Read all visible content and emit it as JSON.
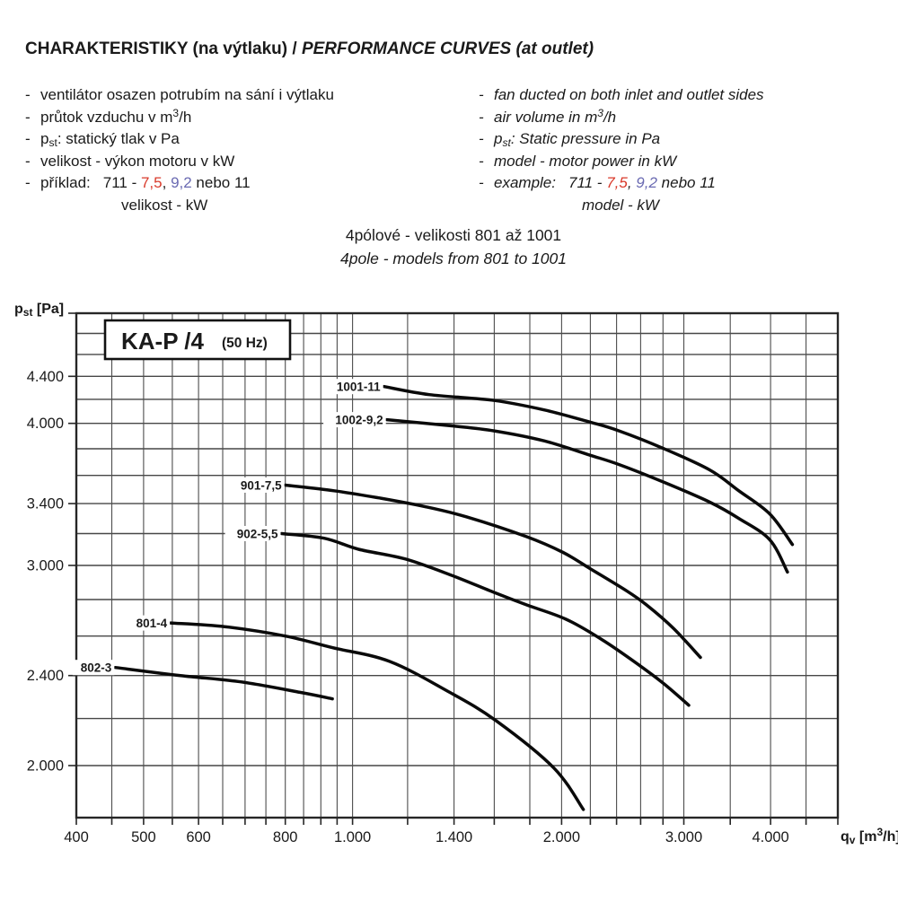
{
  "header": {
    "title_cz": "CHARAKTERISTIKY (na výtlaku)",
    "title_sep": " / ",
    "title_en": "PERFORMANCE CURVES (at outlet)"
  },
  "notes": {
    "cz_items": [
      {
        "dash": true,
        "parts": [
          {
            "t": "ventilátor osazen potrubím na sání i výtlaku"
          }
        ]
      },
      {
        "dash": true,
        "parts": [
          {
            "t": "průtok vzduchu v m"
          },
          {
            "t": "3",
            "sup": 1
          },
          {
            "t": "/h"
          }
        ]
      },
      {
        "dash": true,
        "parts": [
          {
            "t": "p"
          },
          {
            "t": "st",
            "sub": 1
          },
          {
            "t": ": statický tlak v Pa"
          }
        ]
      },
      {
        "dash": true,
        "parts": [
          {
            "t": "velikost - výkon motoru v kW"
          }
        ]
      },
      {
        "dash": true,
        "parts": [
          {
            "t": "příklad:"
          },
          {
            "t": "711 - ",
            "gap": 1
          },
          {
            "t": "7,5",
            "c": "red"
          },
          {
            "t": ", "
          },
          {
            "t": "9,2",
            "c": "blue"
          },
          {
            "t": " nebo 11"
          }
        ]
      },
      {
        "dash": false,
        "indent": 90,
        "parts": [
          {
            "t": "velikost - kW"
          }
        ]
      }
    ],
    "en_items": [
      {
        "dash": true,
        "parts": [
          {
            "t": "fan ducted on both inlet and outlet sides"
          }
        ]
      },
      {
        "dash": true,
        "parts": [
          {
            "t": "air volume in m"
          },
          {
            "t": "3",
            "sup": 1
          },
          {
            "t": "/h"
          }
        ]
      },
      {
        "dash": true,
        "parts": [
          {
            "t": "p"
          },
          {
            "t": "st",
            "sub": 1
          },
          {
            "t": ": Static pressure in Pa"
          }
        ]
      },
      {
        "dash": true,
        "parts": [
          {
            "t": "model - motor power in kW"
          }
        ]
      },
      {
        "dash": true,
        "parts": [
          {
            "t": "example:"
          },
          {
            "t": "711 - ",
            "gap": 1
          },
          {
            "t": "7,5",
            "c": "red"
          },
          {
            "t": ", "
          },
          {
            "t": "9,2",
            "c": "blue"
          },
          {
            "t": " nebo 11"
          }
        ]
      },
      {
        "dash": false,
        "indent": 98,
        "parts": [
          {
            "t": "model - kW"
          }
        ]
      }
    ]
  },
  "subtitle": {
    "line1": "4pólové - velikosti 801 až 1001",
    "line2": "4pole - models from 801 to 1001"
  },
  "colors": {
    "red": "#d93a2b",
    "blue": "#6a6ab2",
    "text": "#1a1a1a",
    "grid_v": "#4d4d4d",
    "grid_h": "#474747",
    "border": "#262626",
    "curve": "#0a0a0a"
  },
  "chart_data": {
    "type": "line",
    "title_box": {
      "model_text": "KA-P /4",
      "freq_text": "(50 Hz)"
    },
    "x_scale": "log",
    "y_scale": "log",
    "xlim": [
      400,
      5000
    ],
    "ylim": [
      1800,
      5000
    ],
    "xlabel_parts": [
      {
        "t": "q"
      },
      {
        "t": "v",
        "sub": 1
      },
      {
        "t": " [m"
      },
      {
        "t": "3",
        "sup": 1
      },
      {
        "t": "/h]"
      }
    ],
    "ylabel_parts": [
      {
        "t": "p"
      },
      {
        "t": "st",
        "sub": 1
      },
      {
        "t": " [Pa]"
      }
    ],
    "x_gridlines": [
      400,
      450,
      500,
      550,
      600,
      650,
      700,
      750,
      800,
      850,
      900,
      950,
      1000,
      1200,
      1400,
      1600,
      1800,
      2000,
      2200,
      2400,
      2600,
      2800,
      3000,
      3500,
      4000,
      4500,
      5000
    ],
    "y_gridlines": [
      1800,
      2000,
      2200,
      2400,
      2600,
      2800,
      3000,
      3200,
      3400,
      3600,
      3800,
      4000,
      4200,
      4400,
      4600,
      4800,
      5000
    ],
    "x_ticks": [
      {
        "v": 400,
        "label": "400"
      },
      {
        "v": 500,
        "label": "500"
      },
      {
        "v": 600,
        "label": "600"
      },
      {
        "v": 800,
        "label": "800"
      },
      {
        "v": 1000,
        "label": "1.000"
      },
      {
        "v": 1400,
        "label": "1.400"
      },
      {
        "v": 2000,
        "label": "2.000"
      },
      {
        "v": 3000,
        "label": "3.000"
      },
      {
        "v": 4000,
        "label": "4.000"
      }
    ],
    "y_ticks": [
      {
        "v": 2000,
        "label": "2.000"
      },
      {
        "v": 2400,
        "label": "2.400"
      },
      {
        "v": 3000,
        "label": "3.000"
      },
      {
        "v": 3400,
        "label": "3.400"
      },
      {
        "v": 4000,
        "label": "4.000"
      },
      {
        "v": 4400,
        "label": "4.400"
      }
    ],
    "series": [
      {
        "name": "1001-11",
        "points": [
          [
            1110,
            4310
          ],
          [
            1290,
            4240
          ],
          [
            1600,
            4190
          ],
          [
            1890,
            4110
          ],
          [
            2200,
            4010
          ],
          [
            2420,
            3940
          ],
          [
            2810,
            3800
          ],
          [
            3270,
            3640
          ],
          [
            3600,
            3490
          ],
          [
            3990,
            3330
          ],
          [
            4300,
            3130
          ]
        ]
      },
      {
        "name": "1002-9,2",
        "points": [
          [
            1120,
            4030
          ],
          [
            1390,
            3980
          ],
          [
            1600,
            3940
          ],
          [
            1890,
            3860
          ],
          [
            2200,
            3750
          ],
          [
            2420,
            3680
          ],
          [
            2810,
            3550
          ],
          [
            3270,
            3410
          ],
          [
            3600,
            3300
          ],
          [
            3990,
            3160
          ],
          [
            4230,
            2960
          ]
        ]
      },
      {
        "name": "901-7,5",
        "points": [
          [
            800,
            3530
          ],
          [
            940,
            3490
          ],
          [
            1090,
            3440
          ],
          [
            1270,
            3380
          ],
          [
            1460,
            3310
          ],
          [
            1780,
            3180
          ],
          [
            2010,
            3080
          ],
          [
            2200,
            2980
          ],
          [
            2480,
            2850
          ],
          [
            2650,
            2770
          ],
          [
            2900,
            2640
          ],
          [
            3170,
            2490
          ]
        ]
      },
      {
        "name": "902-5,5",
        "points": [
          [
            790,
            3200
          ],
          [
            910,
            3170
          ],
          [
            1020,
            3100
          ],
          [
            1190,
            3040
          ],
          [
            1390,
            2940
          ],
          [
            1600,
            2840
          ],
          [
            1780,
            2770
          ],
          [
            2030,
            2690
          ],
          [
            2290,
            2580
          ],
          [
            2590,
            2450
          ],
          [
            2810,
            2360
          ],
          [
            3050,
            2260
          ]
        ]
      },
      {
        "name": "801-4",
        "points": [
          [
            547,
            2670
          ],
          [
            654,
            2650
          ],
          [
            800,
            2600
          ],
          [
            935,
            2540
          ],
          [
            1130,
            2470
          ],
          [
            1380,
            2320
          ],
          [
            1610,
            2190
          ],
          [
            1950,
            1990
          ],
          [
            2150,
            1830
          ]
        ]
      },
      {
        "name": "802-3",
        "points": [
          [
            455,
            2440
          ],
          [
            565,
            2400
          ],
          [
            690,
            2370
          ],
          [
            840,
            2320
          ],
          [
            935,
            2290
          ]
        ]
      }
    ]
  }
}
